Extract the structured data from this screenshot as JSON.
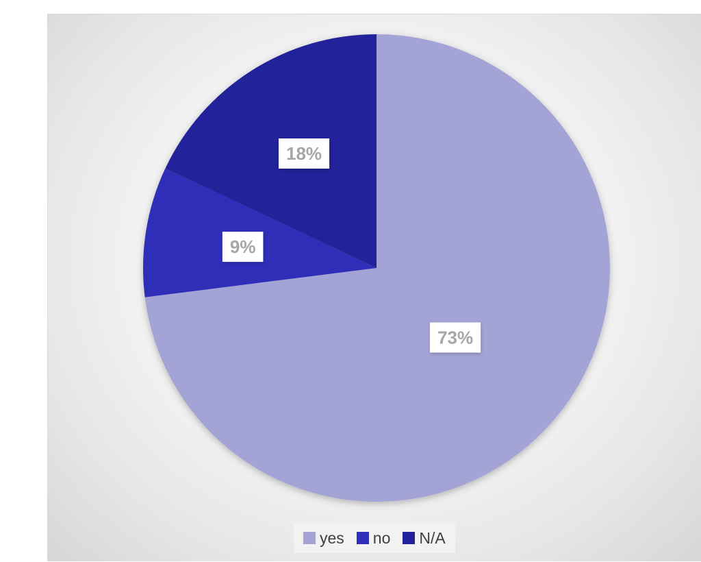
{
  "chart_data": {
    "type": "pie",
    "title": "",
    "categories": [
      "yes",
      "no",
      "N/A"
    ],
    "values": [
      73,
      9,
      18
    ],
    "value_labels": [
      "73%",
      "9%",
      "18%"
    ],
    "colors": [
      "#a3a3d6",
      "#2e2eb8",
      "#22229a"
    ],
    "start_angle_deg": 0,
    "direction": "clockwise",
    "legend": {
      "position": "bottom",
      "items": [
        {
          "label": "yes",
          "color": "#a3a3d6"
        },
        {
          "label": "no",
          "color": "#2e2eb8"
        },
        {
          "label": "N/A",
          "color": "#22229a"
        }
      ]
    }
  }
}
